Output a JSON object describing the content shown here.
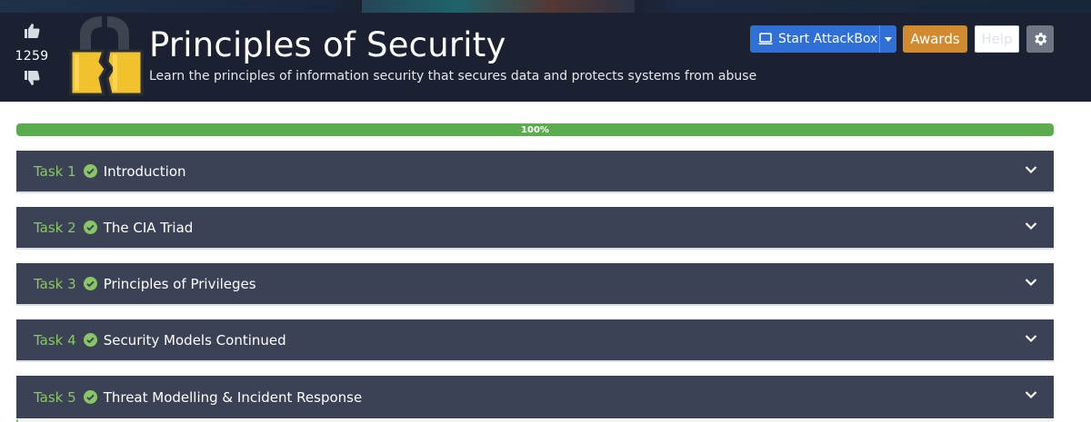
{
  "room": {
    "title": "Principles of Security",
    "subtitle": "Learn the principles of information security that secures data and protects systems from abuse",
    "votes": "1259",
    "logo_icon": "padlock-icon"
  },
  "header_buttons": {
    "attackbox_label": "Start AttackBox",
    "awards_label": "Awards",
    "help_label": "Help"
  },
  "progress": {
    "value": 1.0,
    "label": "100%"
  },
  "tasks": [
    {
      "number": "Task 1",
      "title": "Introduction",
      "completed": true
    },
    {
      "number": "Task 2",
      "title": "The CIA Triad",
      "completed": true
    },
    {
      "number": "Task 3",
      "title": "Principles of Privileges",
      "completed": true
    },
    {
      "number": "Task 4",
      "title": "Security Models Continued",
      "completed": true
    },
    {
      "number": "Task 5",
      "title": "Threat Modelling & Incident Response",
      "completed": true
    }
  ],
  "colors": {
    "banner": "#1b2130",
    "task_bar": "#3b4255",
    "task_number": "#88c764",
    "progress_fill": "#5bab4f",
    "attackbox_button": "#2f6fd6",
    "awards_button": "#d28a2f",
    "gear_button": "#707784"
  }
}
